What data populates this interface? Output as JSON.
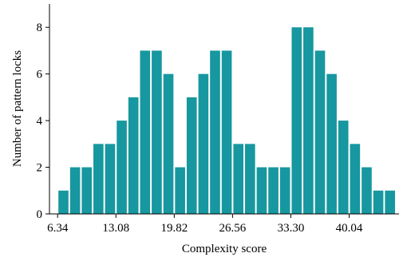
{
  "chart_data": {
    "type": "histogram",
    "xlabel": "Complexity score",
    "ylabel": "Number of pattern locks",
    "bins": [
      6.34,
      7.688,
      9.036,
      10.384,
      11.732,
      13.08,
      14.428,
      15.776,
      17.124,
      18.472,
      19.82,
      21.168,
      22.516,
      23.864,
      25.212,
      26.56,
      27.908,
      29.256,
      30.604,
      31.952,
      33.3,
      34.648,
      35.996,
      37.344,
      38.692,
      40.04,
      41.388,
      42.736,
      44.084,
      45.432
    ],
    "values": [
      1,
      2,
      2,
      3,
      3,
      4,
      5,
      7,
      7,
      6,
      2,
      5,
      6,
      7,
      7,
      3,
      3,
      2,
      2,
      2,
      8,
      8,
      7,
      6,
      4,
      3,
      2,
      1,
      1
    ],
    "color": "#17979f",
    "xlim": [
      5.4,
      45.8
    ],
    "ylim": [
      0,
      9
    ],
    "xticks": [
      6.34,
      13.08,
      19.82,
      26.56,
      {
        "value": 33.3,
        "label": "33.30"
      },
      40.04
    ],
    "yticks": [
      0,
      2,
      4,
      6,
      8
    ]
  }
}
